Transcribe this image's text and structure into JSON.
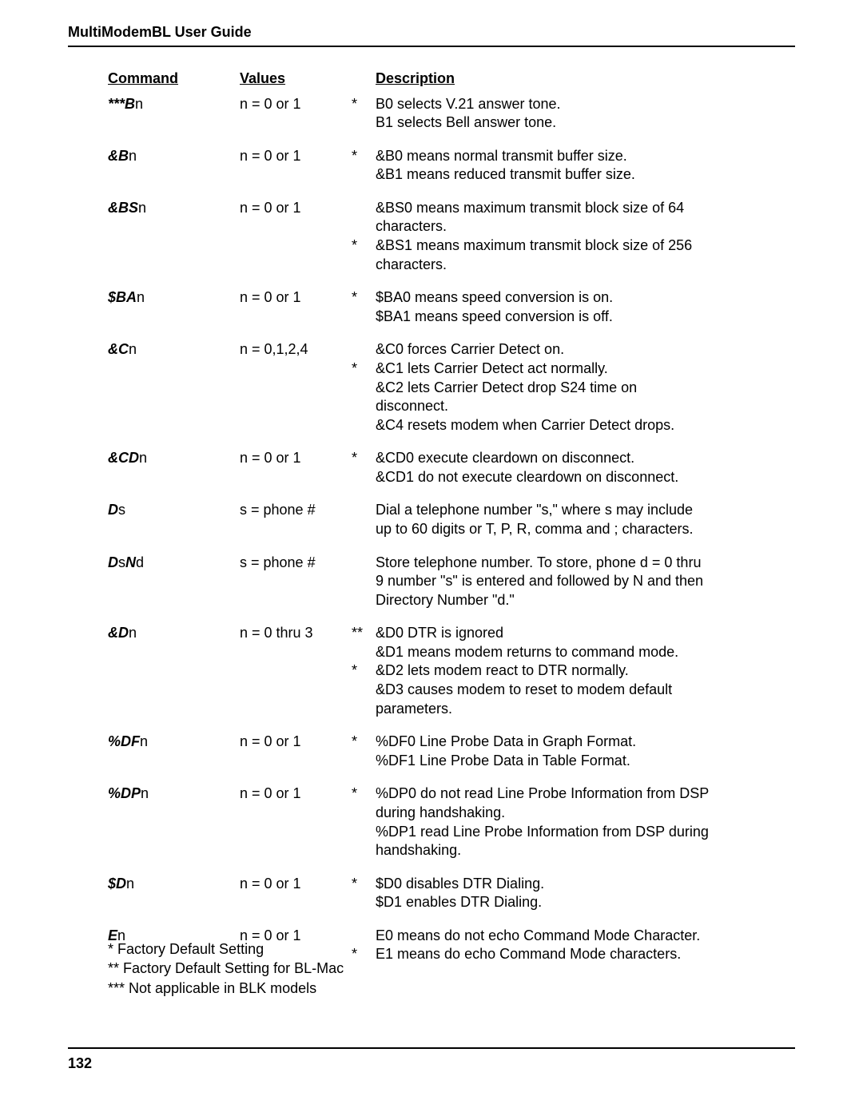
{
  "header": {
    "title": "MultiModemBL User Guide"
  },
  "table": {
    "headers": {
      "command": "Command",
      "values": "Values",
      "description": "Description"
    },
    "rows": [
      {
        "command": {
          "stars": "***",
          "prefix": "B",
          "suffix": "n"
        },
        "values": "n = 0 or 1",
        "marks": [
          "*"
        ],
        "desc": [
          "B0 selects V.21 answer tone.",
          "B1 selects Bell answer tone."
        ]
      },
      {
        "command": {
          "prefix": "&B",
          "suffix": "n"
        },
        "values": "n = 0 or 1",
        "marks": [
          "*"
        ],
        "desc": [
          "&B0 means normal transmit buffer size.",
          "&B1 means reduced transmit buffer size."
        ]
      },
      {
        "command": {
          "prefix": "&BS",
          "suffix": "n"
        },
        "values": "n = 0 or 1",
        "marks": [
          "",
          "",
          "*"
        ],
        "desc": [
          "&BS0 means maximum transmit block size of 64",
          "characters.",
          "&BS1 means maximum transmit block size of 256",
          "characters."
        ]
      },
      {
        "command": {
          "prefix": "$BA",
          "suffix": "n"
        },
        "values": "n = 0 or 1",
        "marks": [
          "*"
        ],
        "desc": [
          "$BA0 means speed conversion is on.",
          "$BA1 means speed conversion is off."
        ]
      },
      {
        "command": {
          "prefix": "&C",
          "suffix": "n"
        },
        "values": "n = 0,1,2,4",
        "marks": [
          "",
          "*"
        ],
        "desc": [
          "&C0 forces Carrier Detect on.",
          "&C1 lets Carrier Detect act normally.",
          "&C2 lets Carrier Detect drop S24 time on",
          "disconnect.",
          "&C4 resets modem when Carrier Detect drops."
        ]
      },
      {
        "command": {
          "prefix": "&CD",
          "suffix": "n"
        },
        "values": "n = 0 or 1",
        "marks": [
          "*"
        ],
        "desc": [
          "&CD0 execute cleardown on disconnect.",
          "&CD1 do not execute cleardown on disconnect."
        ]
      },
      {
        "command": {
          "prefix": "D",
          "suffix": "s"
        },
        "values": "s = phone #",
        "marks": [],
        "desc": [
          "Dial a telephone number \"s,\" where s may include",
          "up to 60 digits or T, P, R, comma and ; characters."
        ]
      },
      {
        "command": {
          "segments": [
            {
              "p": "D",
              "s": "s"
            },
            {
              "p": "N",
              "s": "d"
            }
          ]
        },
        "values": "s = phone #",
        "marks": [],
        "desc": [
          "Store telephone number. To store, phone d = 0 thru",
          "9 number \"s\" is entered and followed by N and then",
          "Directory Number \"d.\""
        ]
      },
      {
        "command": {
          "prefix": "&D",
          "suffix": "n"
        },
        "values": "n = 0 thru 3",
        "marks": [
          "**",
          "",
          "*"
        ],
        "desc": [
          "&D0 DTR is ignored",
          "&D1 means modem returns to command mode.",
          "&D2 lets modem react to DTR normally.",
          "&D3 causes modem to reset to modem default",
          "parameters."
        ]
      },
      {
        "command": {
          "prefix": "%DF",
          "suffix": "n"
        },
        "values": "n = 0 or 1",
        "marks": [
          "*"
        ],
        "desc": [
          "%DF0 Line Probe Data in Graph Format.",
          "%DF1 Line Probe Data in Table Format."
        ]
      },
      {
        "command": {
          "prefix": "%DP",
          "suffix": "n"
        },
        "values": "n = 0 or 1",
        "marks": [
          "*"
        ],
        "desc": [
          "%DP0 do not read Line Probe Information from DSP",
          "during handshaking.",
          "%DP1 read Line Probe Information from DSP during",
          "handshaking."
        ]
      },
      {
        "command": {
          "prefix": "$D",
          "suffix": "n"
        },
        "values": "n = 0 or 1",
        "marks": [
          "*"
        ],
        "desc": [
          "$D0 disables DTR Dialing.",
          "$D1 enables DTR Dialing."
        ]
      },
      {
        "command": {
          "prefix": "E",
          "suffix": "n"
        },
        "values": "n = 0 or 1",
        "marks": [
          "",
          "*"
        ],
        "desc": [
          "E0 means do not echo Command Mode Character.",
          "E1 means do echo Command Mode characters."
        ]
      }
    ]
  },
  "footnotes": [
    "* Factory Default Setting",
    "** Factory Default Setting for BL-Mac",
    "*** Not applicable in BLK models"
  ],
  "pageNumber": "132"
}
